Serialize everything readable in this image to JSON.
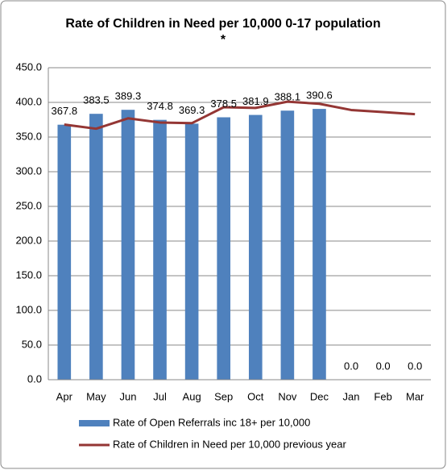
{
  "chart_data": {
    "type": "bar",
    "title": [
      "Rate of Children in Need per 10,000 0-17 population",
      "*"
    ],
    "categories": [
      "Apr",
      "May",
      "Jun",
      "Jul",
      "Aug",
      "Sep",
      "Oct",
      "Nov",
      "Dec",
      "Jan",
      "Feb",
      "Mar"
    ],
    "series": [
      {
        "name": "Rate of Open Referrals inc 18+ per 10,000",
        "type": "bar",
        "color": "#4f81bd",
        "values": [
          367.8,
          383.5,
          389.3,
          374.8,
          369.3,
          378.5,
          381.9,
          388.1,
          390.6,
          0,
          0,
          0
        ],
        "value_labels": [
          "367.8",
          "383.5",
          "389.3",
          "374.8",
          "369.3",
          "378.5",
          "381.9",
          "388.1",
          "390.6",
          "0.0",
          "0.0",
          "0.0"
        ]
      },
      {
        "name": "Rate of Children in Need per 10,000 previous year",
        "type": "line",
        "color": "#943634",
        "values": [
          368,
          362,
          377,
          371,
          370,
          393,
          392,
          401,
          398,
          389,
          386,
          383
        ]
      }
    ],
    "ylim": [
      0,
      450
    ],
    "yticks": [
      {
        "value": 0,
        "label": "0.0"
      },
      {
        "value": 50,
        "label": "50.0"
      },
      {
        "value": 100,
        "label": "100.0"
      },
      {
        "value": 150,
        "label": "150.0"
      },
      {
        "value": 200,
        "label": "200.0"
      },
      {
        "value": 250,
        "label": "250.0"
      },
      {
        "value": 300,
        "label": "300.0"
      },
      {
        "value": 350,
        "label": "350.0"
      },
      {
        "value": 400,
        "label": "400.0"
      },
      {
        "value": 450,
        "label": "450.0"
      }
    ],
    "grid": true,
    "legend": "bottom"
  }
}
